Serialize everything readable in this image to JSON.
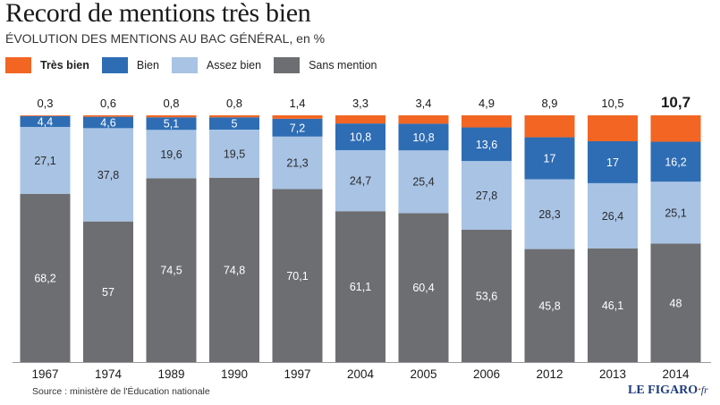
{
  "header": {
    "title": "Record de mentions très bien",
    "subtitle": "ÉVOLUTION DES MENTIONS AU BAC GÉNÉRAL, en %"
  },
  "legend": [
    {
      "label": "Très bien",
      "color": "#f26522",
      "bold": true
    },
    {
      "label": "Bien",
      "color": "#2e6db4"
    },
    {
      "label": "Assez bien",
      "color": "#a8c3e4"
    },
    {
      "label": "Sans mention",
      "color": "#6d6e71"
    }
  ],
  "chart_data": {
    "type": "bar",
    "stacked": true,
    "categories": [
      "1967",
      "1974",
      "1989",
      "1990",
      "1997",
      "2004",
      "2005",
      "2006",
      "2012",
      "2013",
      "2014"
    ],
    "series": [
      {
        "name": "Sans mention",
        "color": "#6d6e71",
        "values": [
          68.2,
          57,
          74.5,
          74.8,
          70.1,
          61.1,
          60.4,
          53.6,
          45.8,
          46.1,
          48
        ],
        "labels": [
          "68,2",
          "57",
          "74,5",
          "74,8",
          "70,1",
          "61,1",
          "60,4",
          "53,6",
          "45,8",
          "46,1",
          "48"
        ]
      },
      {
        "name": "Assez bien",
        "color": "#a8c3e4",
        "values": [
          27.1,
          37.8,
          19.6,
          19.5,
          21.3,
          24.7,
          25.4,
          27.8,
          28.3,
          26.4,
          25.1
        ],
        "labels": [
          "27,1",
          "37,8",
          "19,6",
          "19,5",
          "21,3",
          "24,7",
          "25,4",
          "27,8",
          "28,3",
          "26,4",
          "25,1"
        ]
      },
      {
        "name": "Bien",
        "color": "#2e6db4",
        "values": [
          4.4,
          4.6,
          5.1,
          5,
          7.2,
          10.8,
          10.8,
          13.6,
          17,
          17,
          16.2
        ],
        "labels": [
          "4,4",
          "4,6",
          "5,1",
          "5",
          "7,2",
          "10,8",
          "10,8",
          "13,6",
          "17",
          "17",
          "16,2"
        ]
      },
      {
        "name": "Très bien",
        "color": "#f26522",
        "values": [
          0.3,
          0.6,
          0.8,
          0.8,
          1.4,
          3.3,
          3.4,
          4.9,
          8.9,
          10.5,
          10.7
        ],
        "labels": [
          "0,3",
          "0,6",
          "0,8",
          "0,8",
          "1,4",
          "3,3",
          "3,4",
          "4,9",
          "8,9",
          "10,5",
          "10,7"
        ]
      }
    ],
    "highlight_category": "2014",
    "ylim": [
      0,
      100
    ]
  },
  "footer": {
    "source": "Source : ministère de l'Éducation nationale",
    "logo": "LE FIGARO",
    "logo_dot": "·",
    "logo_ext": "fr"
  }
}
